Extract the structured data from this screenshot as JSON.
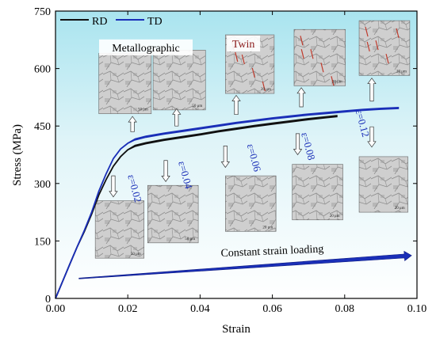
{
  "chart_data": {
    "type": "line",
    "title": "",
    "xlabel": "Strain",
    "ylabel": "Stress (MPa)",
    "xlim": [
      0.0,
      0.1
    ],
    "ylim": [
      0,
      750
    ],
    "x_ticks": [
      "0.00",
      "0.02",
      "0.04",
      "0.06",
      "0.08",
      "0.10"
    ],
    "y_ticks": [
      "0",
      "150",
      "300",
      "450",
      "600",
      "750"
    ],
    "legend": {
      "position": "top-left"
    },
    "series": [
      {
        "name": "RD",
        "color": "#111111",
        "x": [
          0.0,
          0.002,
          0.004,
          0.006,
          0.008,
          0.01,
          0.012,
          0.014,
          0.016,
          0.018,
          0.02,
          0.022,
          0.025,
          0.03,
          0.035,
          0.04,
          0.045,
          0.05,
          0.055,
          0.06,
          0.065,
          0.07,
          0.075,
          0.078
        ],
        "y": [
          0,
          45,
          90,
          135,
          175,
          220,
          270,
          310,
          345,
          370,
          388,
          398,
          405,
          414,
          421,
          428,
          436,
          443,
          450,
          456,
          462,
          468,
          473,
          476
        ]
      },
      {
        "name": "TD",
        "color": "#1a2fb8",
        "x": [
          0.0,
          0.002,
          0.004,
          0.006,
          0.008,
          0.01,
          0.012,
          0.014,
          0.016,
          0.018,
          0.02,
          0.022,
          0.025,
          0.03,
          0.035,
          0.04,
          0.045,
          0.05,
          0.055,
          0.06,
          0.065,
          0.07,
          0.075,
          0.08,
          0.085,
          0.09,
          0.095
        ],
        "y": [
          0,
          45,
          90,
          135,
          178,
          225,
          280,
          325,
          365,
          390,
          405,
          415,
          422,
          430,
          437,
          444,
          451,
          458,
          464,
          470,
          475,
          480,
          484,
          488,
          492,
          495,
          497
        ]
      }
    ],
    "annotations": [
      {
        "text": "Metallographic",
        "x": 0.025,
        "y": 645
      },
      {
        "text": "Twin",
        "x": 0.052,
        "y": 655
      },
      {
        "text": "ε=0.02",
        "x": 0.021,
        "y": 285
      },
      {
        "text": "ε=0.04",
        "x": 0.035,
        "y": 320
      },
      {
        "text": "ε=0.06",
        "x": 0.054,
        "y": 365
      },
      {
        "text": "ε=0.08",
        "x": 0.069,
        "y": 395
      },
      {
        "text": "ε=0.12",
        "x": 0.084,
        "y": 455
      },
      {
        "text": "Constant strain loading",
        "x": 0.06,
        "y": 115
      }
    ],
    "micrographs": [
      {
        "scale": "50 μm",
        "x0": 0.012,
        "x1": 0.0265,
        "y0": 482,
        "y1": 640
      },
      {
        "scale": "50 μm",
        "x0": 0.027,
        "x1": 0.0415,
        "y0": 492,
        "y1": 648
      },
      {
        "scale": "20 μm",
        "x0": 0.047,
        "x1": 0.0605,
        "y0": 535,
        "y1": 688
      },
      {
        "scale": "20 μm",
        "x0": 0.066,
        "x1": 0.0802,
        "y0": 555,
        "y1": 702
      },
      {
        "scale": "20 μm",
        "x0": 0.084,
        "x1": 0.098,
        "y0": 582,
        "y1": 725
      },
      {
        "scale": "50 μm",
        "x0": 0.011,
        "x1": 0.0245,
        "y0": 105,
        "y1": 255
      },
      {
        "scale": "50 μm",
        "x0": 0.0255,
        "x1": 0.0395,
        "y0": 145,
        "y1": 295
      },
      {
        "scale": "20 μm",
        "x0": 0.047,
        "x1": 0.061,
        "y0": 175,
        "y1": 320
      },
      {
        "scale": "20 μm",
        "x0": 0.0655,
        "x1": 0.0795,
        "y0": 205,
        "y1": 350
      },
      {
        "scale": "20 μm",
        "x0": 0.084,
        "x1": 0.0975,
        "y0": 225,
        "y1": 370
      }
    ],
    "lower_arrow": {
      "x0": 0.0065,
      "y0": 52,
      "x1": 0.0985,
      "y1": 112
    },
    "upper_arrows": [
      {
        "x": 0.0213,
        "y0": 435,
        "y1": 475
      },
      {
        "x": 0.0335,
        "y0": 450,
        "y1": 495
      },
      {
        "x": 0.05,
        "y0": 480,
        "y1": 530
      },
      {
        "x": 0.068,
        "y0": 500,
        "y1": 550
      },
      {
        "x": 0.0875,
        "y0": 515,
        "y1": 575
      }
    ],
    "lower_arrows": [
      {
        "x": 0.016,
        "y0": 320,
        "y1": 265
      },
      {
        "x": 0.0305,
        "y0": 360,
        "y1": 305
      },
      {
        "x": 0.047,
        "y0": 398,
        "y1": 342
      },
      {
        "x": 0.067,
        "y0": 430,
        "y1": 375
      },
      {
        "x": 0.0875,
        "y0": 448,
        "y1": 395
      }
    ]
  }
}
